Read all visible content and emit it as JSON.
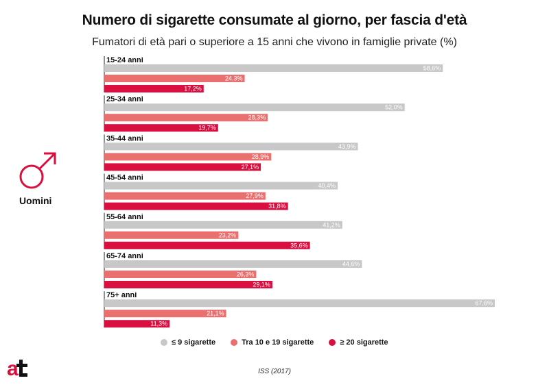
{
  "title": "Numero di sigarette consumate al giorno, per fascia d'età",
  "subtitle": "Fumatori di età pari o superiore a 15 anni che vivono in famiglie private (%)",
  "group_label": "Uomini",
  "source": "ISS (2017)",
  "colors": {
    "light": "#c8c8c8",
    "medium": "#ea6f6f",
    "heavy": "#d90f3f",
    "accent": "#d90f3f"
  },
  "chart_data": {
    "type": "bar",
    "orientation": "horizontal",
    "categories": [
      "15-24 anni",
      "25-34 anni",
      "35-44 anni",
      "45-54 anni",
      "55-64 anni",
      "65-74 anni",
      "75+ anni"
    ],
    "series": [
      {
        "name": "≤ 9 sigarette",
        "color": "#c8c8c8",
        "values": [
          58.6,
          52.0,
          43.9,
          40.4,
          41.2,
          44.6,
          67.6
        ]
      },
      {
        "name": "Tra 10 e 19 sigarette",
        "color": "#ea6f6f",
        "values": [
          24.3,
          28.3,
          28.9,
          27.9,
          23.2,
          26.3,
          21.1
        ]
      },
      {
        "name": "≥ 20 sigarette",
        "color": "#d90f3f",
        "values": [
          17.2,
          19.7,
          27.1,
          31.8,
          35.6,
          29.1,
          11.3
        ]
      }
    ],
    "value_labels": [
      [
        "58,6%",
        "24,3%",
        "17,2%"
      ],
      [
        "52,0%",
        "28,3%",
        "19,7%"
      ],
      [
        "43,9%",
        "28,9%",
        "27,1%"
      ],
      [
        "40,4%",
        "27,9%",
        "31,8%"
      ],
      [
        "41,2%",
        "23,2%",
        "35,6%"
      ],
      [
        "44,6%",
        "26,3%",
        "29,1%"
      ],
      [
        "67,6%",
        "21,1%",
        "11,3%"
      ]
    ],
    "xlim": [
      0,
      67.6
    ],
    "grid": false,
    "legend": "bottom"
  }
}
